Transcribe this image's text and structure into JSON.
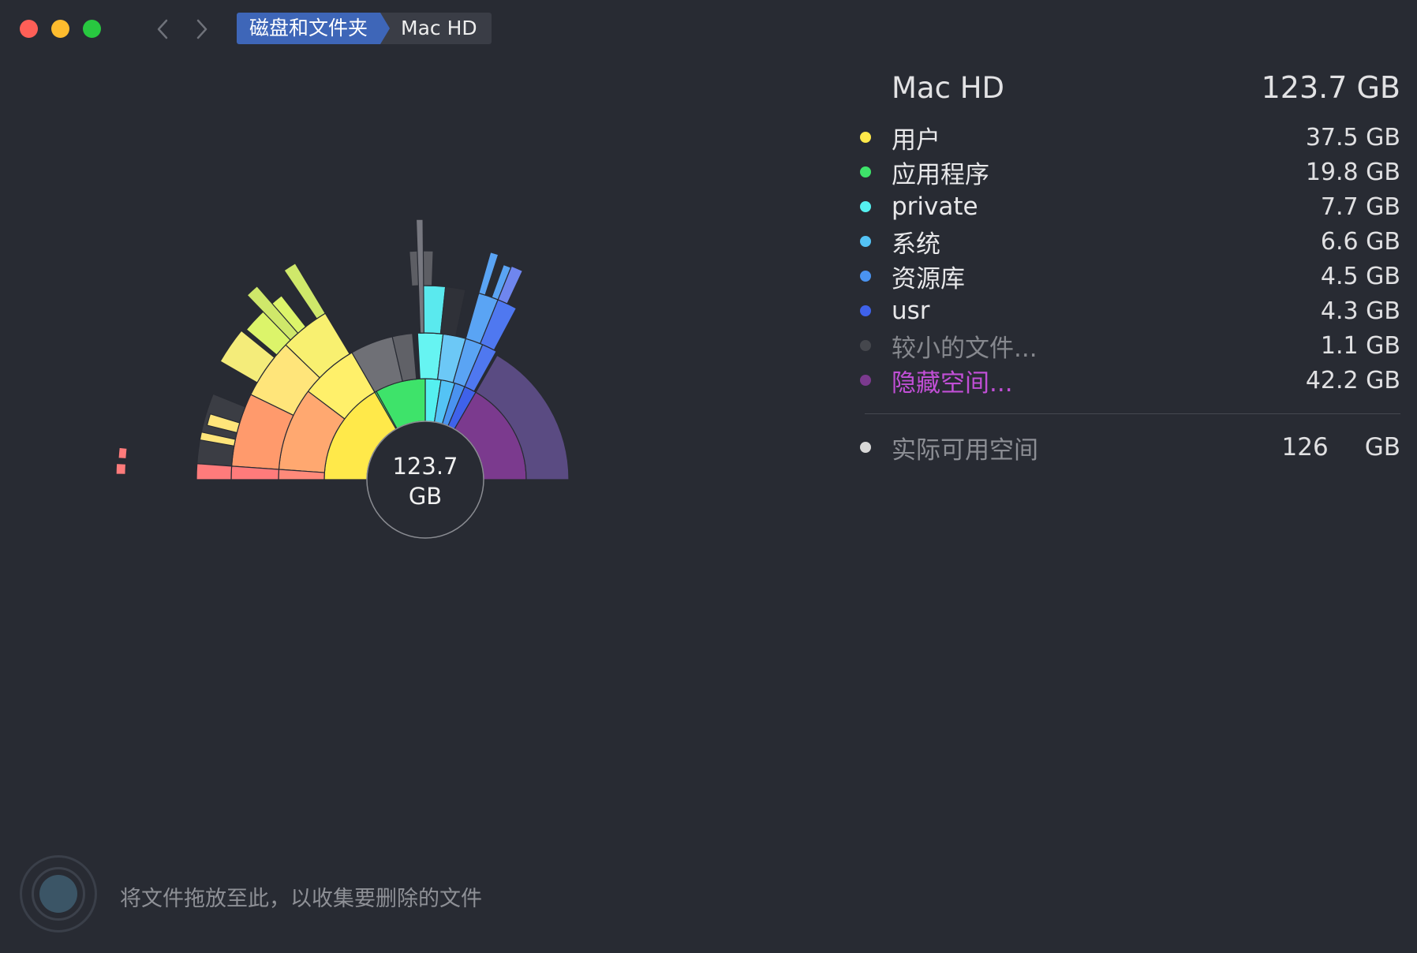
{
  "window": {
    "breadcrumb": [
      "磁盘和文件夹",
      "Mac HD"
    ]
  },
  "chart": {
    "center_value": "123.7",
    "center_unit": "GB",
    "colors": {
      "users": "#ffe94a",
      "apps": "#3ee36a",
      "private": "#55f0f0",
      "system": "#54c3f5",
      "library": "#4a93f0",
      "usr": "#3f62ea",
      "small": "#45474d",
      "hidden": "#7b3a8e"
    }
  },
  "panel": {
    "title": "Mac HD",
    "total": "123.7 GB",
    "items": [
      {
        "label": "用户",
        "size": "37.5 GB",
        "color": "#ffe94a"
      },
      {
        "label": "应用程序",
        "size": "19.8 GB",
        "color": "#3ee36a"
      },
      {
        "label": "private",
        "size": "7.7 GB",
        "color": "#55f0f0"
      },
      {
        "label": "系统",
        "size": "6.6 GB",
        "color": "#54c3f5"
      },
      {
        "label": "资源库",
        "size": "4.5 GB",
        "color": "#4a93f0"
      },
      {
        "label": "usr",
        "size": "4.3 GB",
        "color": "#3f62ea"
      },
      {
        "label": "较小的文件...",
        "size": "1.1 GB",
        "color": "#45474d"
      },
      {
        "label": "隐藏空间...",
        "size": "42.2 GB",
        "color": "#7b3a8e"
      }
    ],
    "free": {
      "label": "实际可用空间",
      "value": "126",
      "unit": "GB",
      "color": "#d8d8d8"
    }
  },
  "drop_hint": "将文件拖放至此，以收集要删除的文件"
}
